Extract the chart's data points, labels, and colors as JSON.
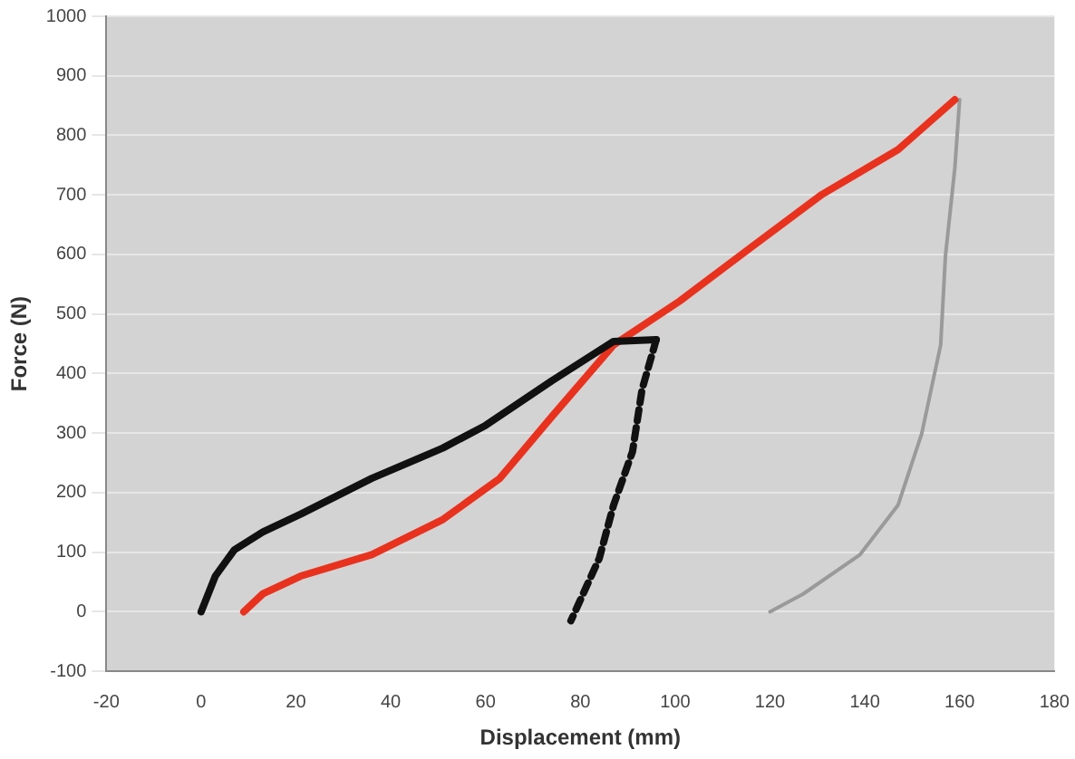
{
  "chart_data": {
    "type": "line",
    "xlabel": "Displacement (mm)",
    "ylabel": "Force (N)",
    "xlim": [
      -20,
      180
    ],
    "xticks": [
      -20,
      0,
      20,
      40,
      60,
      80,
      100,
      120,
      140,
      160,
      180
    ],
    "ylim": [
      -100,
      1000
    ],
    "yticks": [
      -100,
      0,
      100,
      200,
      300,
      400,
      500,
      600,
      700,
      800,
      900,
      1000
    ],
    "grid": "y",
    "marker": "none",
    "series": [
      {
        "color": "#111111",
        "line_style": "solid",
        "x": [
          0,
          3,
          7,
          13,
          21,
          36,
          51,
          60,
          74,
          87,
          96
        ],
        "values": [
          0,
          60,
          104,
          134,
          164,
          224,
          275,
          313,
          388,
          454,
          457
        ]
      },
      {
        "color": "#111111",
        "line_style": "dashed",
        "x": [
          96,
          93,
          91,
          87,
          84,
          78
        ],
        "values": [
          457,
          373,
          269,
          179,
          90,
          -15
        ]
      },
      {
        "color": "#e8321e",
        "line_style": "solid",
        "x": [
          9,
          13,
          21,
          36,
          51,
          63,
          74,
          87,
          101,
          116,
          131,
          147,
          159
        ],
        "values": [
          0,
          30,
          60,
          96,
          155,
          224,
          328,
          448,
          522,
          612,
          701,
          776,
          860
        ]
      },
      {
        "color": "#9a9a9a",
        "line_style": "solid",
        "x": [
          120,
          127,
          139,
          147,
          152,
          156,
          157,
          159,
          160
        ],
        "values": [
          0,
          30,
          96,
          179,
          299,
          448,
          597,
          746,
          860
        ]
      }
    ]
  }
}
